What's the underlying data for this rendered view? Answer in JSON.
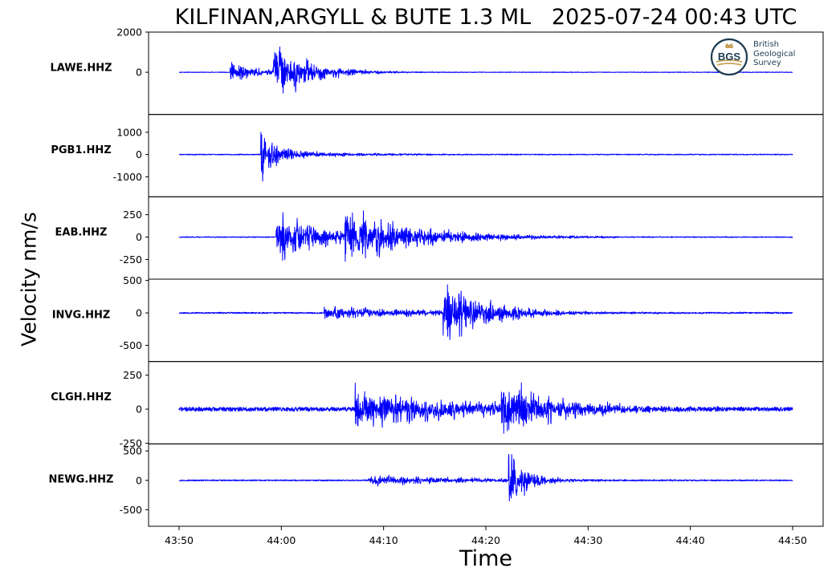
{
  "chart_data": {
    "type": "line",
    "title": "KILFINAN,ARGYLL & BUTE 1.3 ML   2025-07-24 00:43 UTC",
    "xlabel": "Time",
    "ylabel": "Velocity nm/s",
    "x_ticks": [
      "43:50",
      "44:00",
      "44:10",
      "44:20",
      "44:30",
      "44:40",
      "44:50"
    ],
    "xlim_seconds": [
      -5,
      63
    ],
    "series": [
      {
        "name": "LAWE.HHZ",
        "color": "#0000ff",
        "yrange": [
          -2000,
          2000
        ],
        "yticks": [
          2000,
          0
        ],
        "ticklabels": [
          "2000",
          "0"
        ],
        "ylim": [
          -2100,
          2000
        ],
        "noise": 15,
        "seed": 11,
        "arrivals": [
          {
            "t": 5.0,
            "amp": 700,
            "decay": 2.5,
            "period": 0.12
          },
          {
            "t": 9.2,
            "amp": 1900,
            "decay": 3.5,
            "period": 0.12
          }
        ]
      },
      {
        "name": "PGB1.HHZ",
        "color": "#0000ff",
        "yrange": [
          -1650,
          1850
        ],
        "yticks": [
          1000,
          0,
          -1000
        ],
        "ticklabels": [
          "1000",
          "0",
          "-1000"
        ],
        "ylim": [
          -1900,
          1800
        ],
        "noise": 20,
        "seed": 23,
        "arrivals": [
          {
            "t": 8.0,
            "amp": 1700,
            "decay": 1.5,
            "period": 0.15
          },
          {
            "t": 8.4,
            "amp": 250,
            "decay": 8.0,
            "period": 0.18
          }
        ]
      },
      {
        "name": "EAB.HHZ",
        "color": "#0000ff",
        "yrange": [
          -420,
          420
        ],
        "yticks": [
          250,
          0,
          -250
        ],
        "ticklabels": [
          "250",
          "0",
          "-250"
        ],
        "ylim": [
          -470,
          450
        ],
        "noise": 5,
        "seed": 37,
        "arrivals": [
          {
            "t": 9.5,
            "amp": 330,
            "decay": 5.0,
            "period": 0.2
          },
          {
            "t": 16.2,
            "amp": 400,
            "decay": 7.0,
            "period": 0.22
          }
        ]
      },
      {
        "name": "INVG.HHZ",
        "color": "#0000ff",
        "yrange": [
          -700,
          500
        ],
        "yticks": [
          500,
          0,
          -500
        ],
        "ticklabels": [
          "500",
          "0",
          "-500"
        ],
        "ylim": [
          -750,
          520
        ],
        "noise": 10,
        "seed": 53,
        "arrivals": [
          {
            "t": 14.2,
            "amp": 130,
            "decay": 12.0,
            "period": 0.2
          },
          {
            "t": 25.8,
            "amp": 600,
            "decay": 4.5,
            "period": 0.22
          }
        ]
      },
      {
        "name": "CLGH.HHZ",
        "color": "#0000ff",
        "yrange": [
          -250,
          330
        ],
        "yticks": [
          250,
          0,
          -250
        ],
        "ticklabels": [
          "250",
          "0",
          "-250"
        ],
        "ylim": [
          -255,
          350
        ],
        "noise": 15,
        "seed": 71,
        "arrivals": [
          {
            "t": 17.2,
            "amp": 200,
            "decay": 10.0,
            "period": 0.22
          },
          {
            "t": 31.5,
            "amp": 300,
            "decay": 5.0,
            "period": 0.24
          }
        ]
      },
      {
        "name": "NEWG.HHZ",
        "color": "#0000ff",
        "yrange": [
          -720,
          520
        ],
        "yticks": [
          500,
          0,
          -500
        ],
        "ticklabels": [
          "500",
          "0",
          "-500"
        ],
        "ylim": [
          -780,
          620
        ],
        "noise": 10,
        "seed": 97,
        "arrivals": [
          {
            "t": 18.5,
            "amp": 110,
            "decay": 12.0,
            "period": 0.22
          },
          {
            "t": 32.2,
            "amp": 600,
            "decay": 2.0,
            "period": 0.25
          }
        ]
      }
    ]
  },
  "logo": {
    "abbr": "BGS",
    "line1": "British",
    "line2": "Geological",
    "line3": "Survey",
    "primary_color": "#1d3c52",
    "accent_color": "#c8a25a"
  }
}
